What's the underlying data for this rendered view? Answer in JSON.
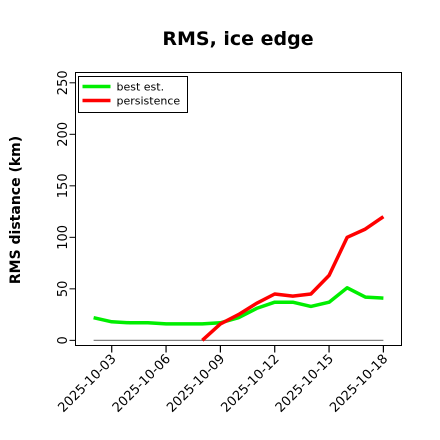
{
  "chart_data": {
    "type": "line",
    "title": "RMS, ice edge",
    "xlabel": "",
    "ylabel": "RMS distance (km)",
    "x_tick_labels": [
      "2025-10-03",
      "2025-10-06",
      "2025-10-09",
      "2025-10-12",
      "2025-10-15",
      "2025-10-18"
    ],
    "y_ticks": [
      0,
      50,
      100,
      150,
      200,
      250
    ],
    "xlim": [
      "2025-10-01",
      "2025-10-19"
    ],
    "ylim": [
      -5,
      260
    ],
    "grid": false,
    "legend_position": "top-left",
    "reference_line": {
      "y": 0,
      "color": "#808080"
    },
    "series": [
      {
        "name": "best est.",
        "color": "#00ee00",
        "points": [
          [
            "2025-10-02",
            22
          ],
          [
            "2025-10-03",
            18
          ],
          [
            "2025-10-04",
            17
          ],
          [
            "2025-10-05",
            17
          ],
          [
            "2025-10-06",
            16
          ],
          [
            "2025-10-07",
            16
          ],
          [
            "2025-10-08",
            16
          ],
          [
            "2025-10-09",
            17
          ],
          [
            "2025-10-10",
            22
          ],
          [
            "2025-10-11",
            31
          ],
          [
            "2025-10-12",
            37
          ],
          [
            "2025-10-13",
            37
          ],
          [
            "2025-10-14",
            33
          ],
          [
            "2025-10-15",
            37
          ],
          [
            "2025-10-16",
            51
          ],
          [
            "2025-10-17",
            42
          ],
          [
            "2025-10-18",
            41
          ]
        ]
      },
      {
        "name": "persistence",
        "color": "#ff0000",
        "points": [
          [
            "2025-10-08",
            0
          ],
          [
            "2025-10-09",
            16
          ],
          [
            "2025-10-10",
            25
          ],
          [
            "2025-10-11",
            36
          ],
          [
            "2025-10-12",
            45
          ],
          [
            "2025-10-13",
            43
          ],
          [
            "2025-10-14",
            45
          ],
          [
            "2025-10-15",
            63
          ],
          [
            "2025-10-16",
            100
          ],
          [
            "2025-10-17",
            108
          ],
          [
            "2025-10-18",
            120
          ]
        ]
      }
    ]
  }
}
